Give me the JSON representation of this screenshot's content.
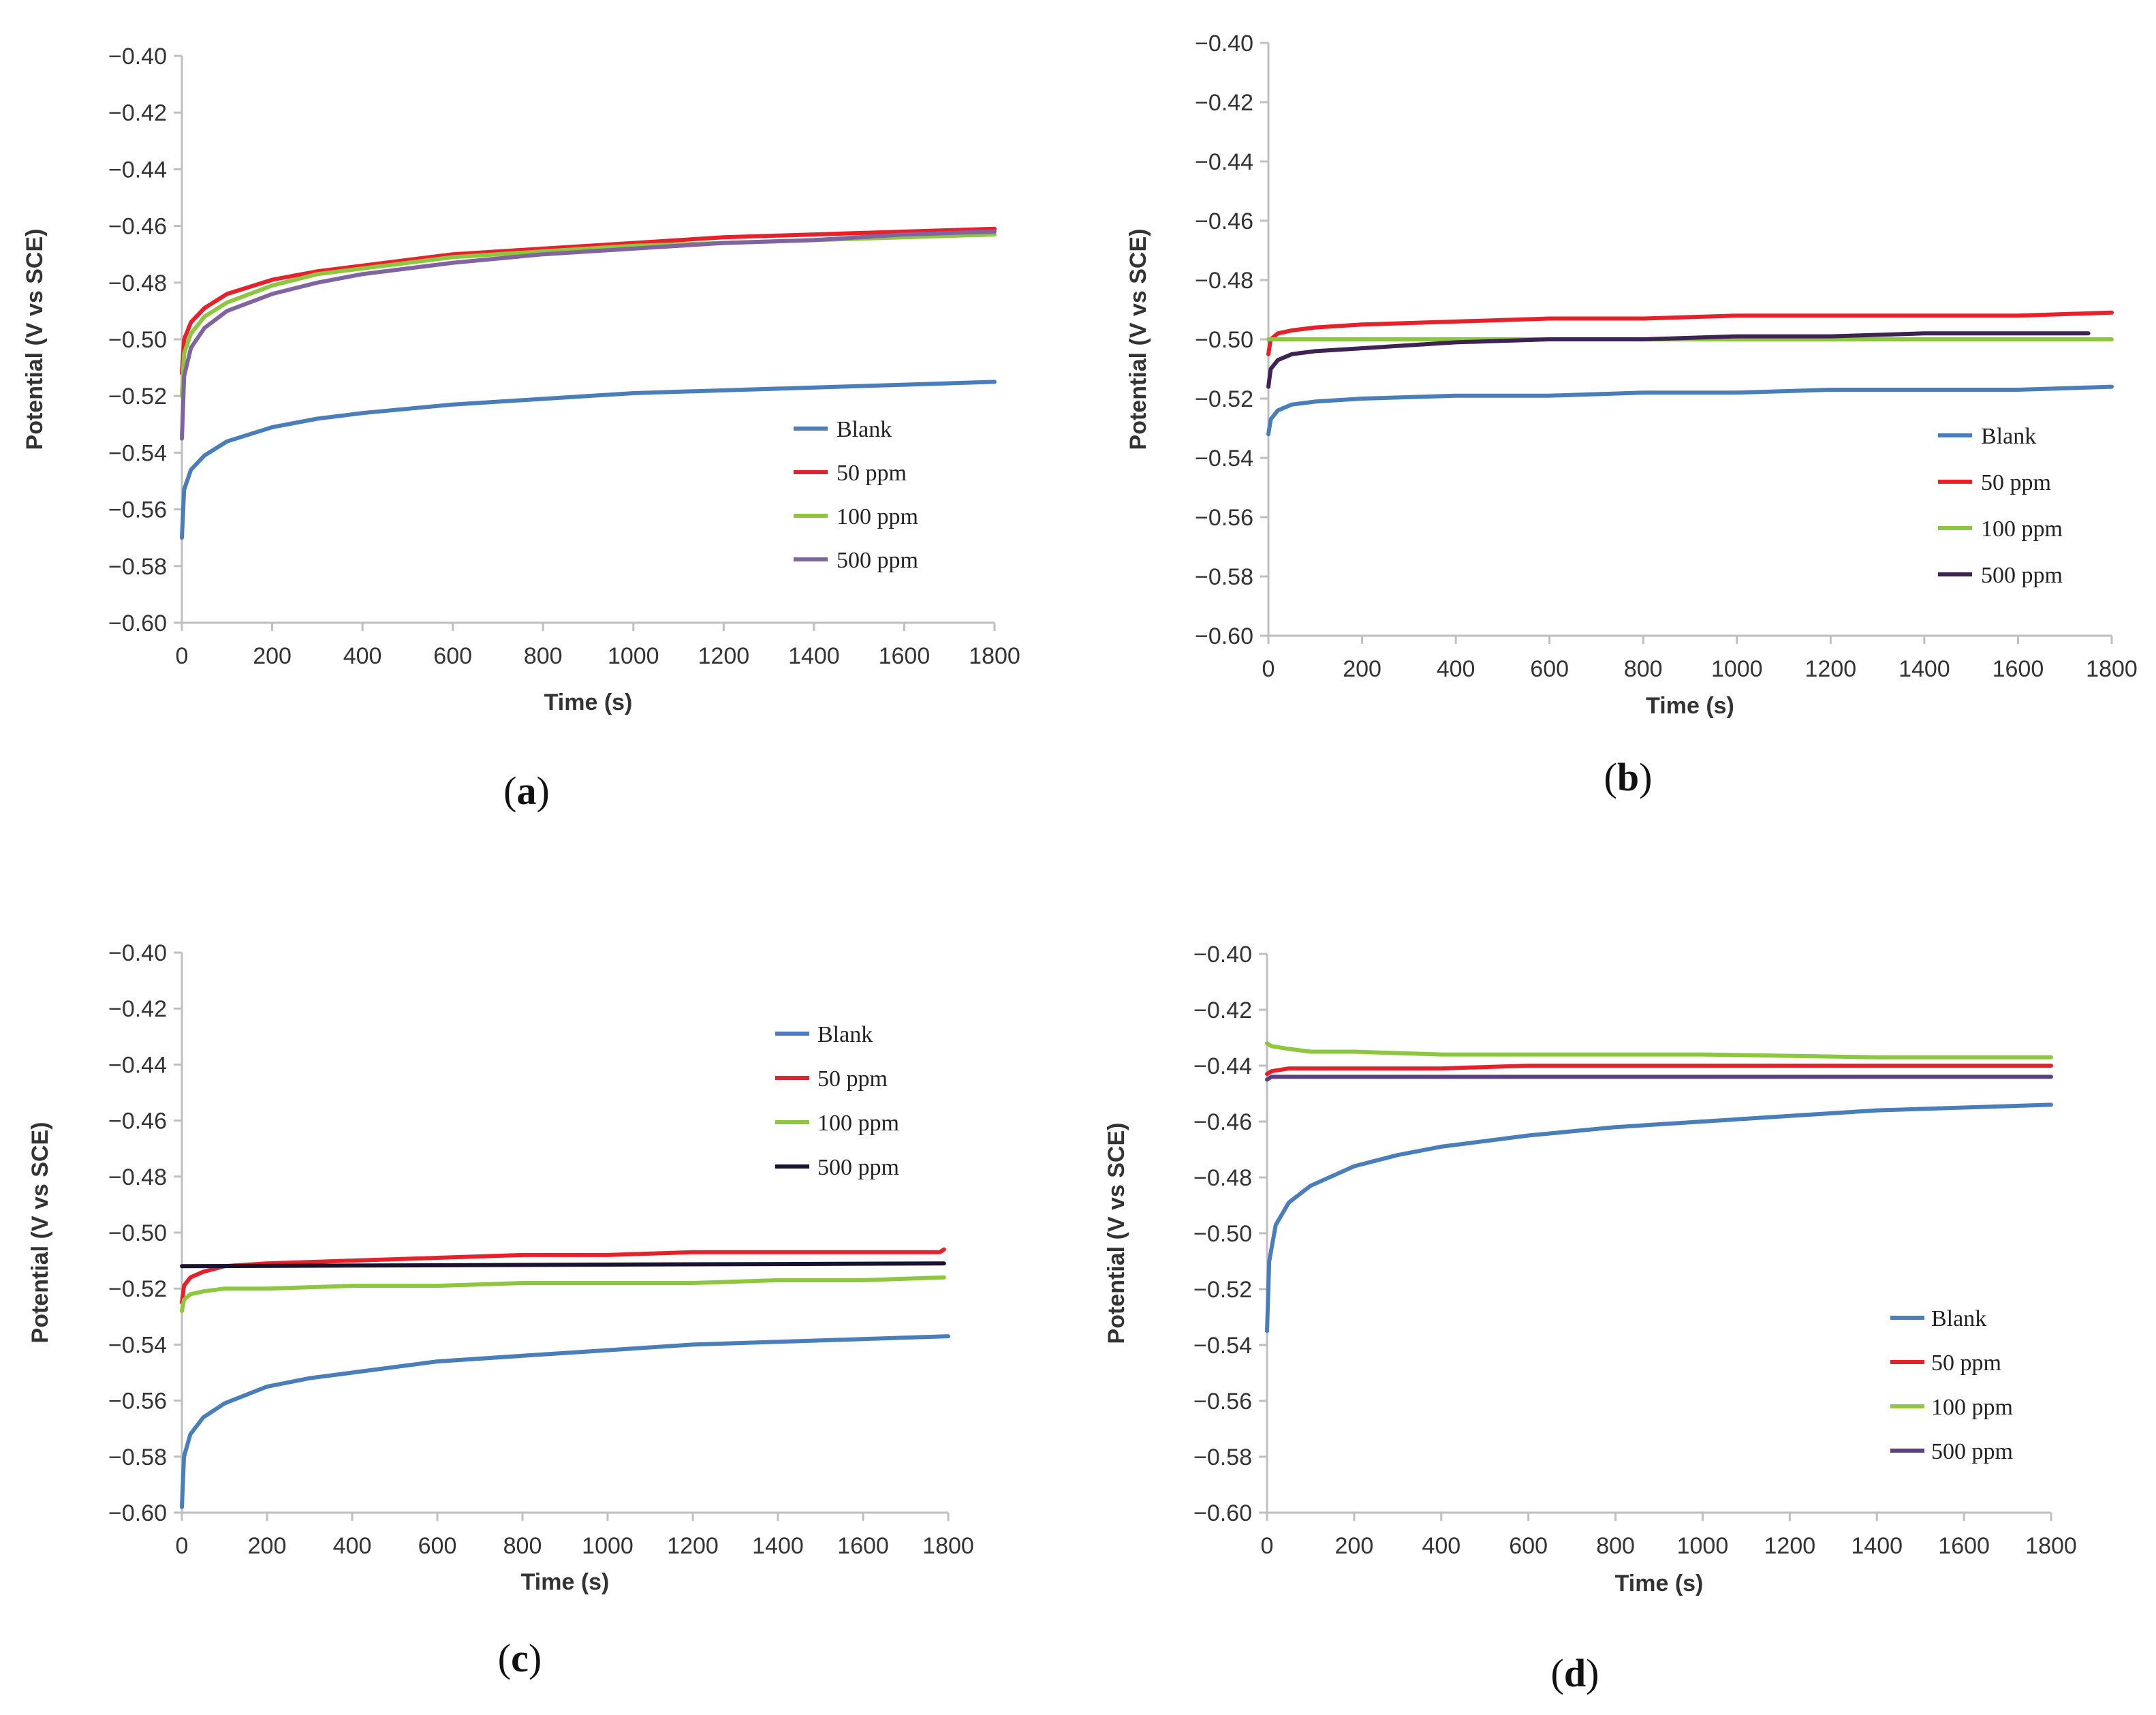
{
  "chart_data": [
    {
      "type": "line",
      "panel_label": "a",
      "xlabel": "Time (s)",
      "ylabel": "Potential (V vs SCE)",
      "xlim": [
        0,
        1800
      ],
      "ylim": [
        -0.6,
        -0.4
      ],
      "xticks": [
        0,
        200,
        400,
        600,
        800,
        1000,
        1200,
        1400,
        1600,
        1800
      ],
      "yticks": [
        -0.4,
        -0.42,
        -0.44,
        -0.46,
        -0.48,
        -0.5,
        -0.52,
        -0.54,
        -0.56,
        -0.58,
        -0.6
      ],
      "ytick_labels": [
        "−0.40",
        "−0.42",
        "−0.44",
        "−0.46",
        "−0.48",
        "−0.50",
        "−0.52",
        "−0.54",
        "−0.56",
        "−0.58",
        "−0.60"
      ],
      "legend": "center-right",
      "series": [
        {
          "name": "Blank",
          "color": "#4a7ebb",
          "x": [
            0,
            5,
            20,
            50,
            100,
            200,
            300,
            400,
            600,
            800,
            1000,
            1200,
            1400,
            1600,
            1800
          ],
          "y": [
            -0.57,
            -0.553,
            -0.546,
            -0.541,
            -0.536,
            -0.531,
            -0.528,
            -0.526,
            -0.523,
            -0.521,
            -0.519,
            -0.518,
            -0.517,
            -0.516,
            -0.515
          ]
        },
        {
          "name": "50 ppm",
          "color": "#e8202a",
          "x": [
            0,
            5,
            20,
            50,
            100,
            200,
            300,
            400,
            600,
            800,
            1000,
            1200,
            1400,
            1600,
            1800
          ],
          "y": [
            -0.512,
            -0.5,
            -0.494,
            -0.489,
            -0.484,
            -0.479,
            -0.476,
            -0.474,
            -0.47,
            -0.468,
            -0.466,
            -0.464,
            -0.463,
            -0.462,
            -0.461
          ]
        },
        {
          "name": "100 ppm",
          "color": "#8dc63f",
          "x": [
            0,
            5,
            20,
            50,
            100,
            200,
            300,
            400,
            600,
            800,
            1000,
            1200,
            1400,
            1600,
            1800
          ],
          "y": [
            -0.52,
            -0.505,
            -0.498,
            -0.492,
            -0.487,
            -0.481,
            -0.477,
            -0.475,
            -0.471,
            -0.469,
            -0.467,
            -0.466,
            -0.465,
            -0.464,
            -0.463
          ]
        },
        {
          "name": "500 ppm",
          "color": "#8064a2",
          "x": [
            0,
            5,
            20,
            50,
            100,
            200,
            300,
            400,
            600,
            800,
            1000,
            1200,
            1400,
            1600,
            1800
          ],
          "y": [
            -0.535,
            -0.513,
            -0.503,
            -0.496,
            -0.49,
            -0.484,
            -0.48,
            -0.477,
            -0.473,
            -0.47,
            -0.468,
            -0.466,
            -0.465,
            -0.463,
            -0.462
          ]
        }
      ]
    },
    {
      "type": "line",
      "panel_label": "b",
      "xlabel": "Time (s)",
      "ylabel": "Potential (V vs SCE)",
      "xlim": [
        0,
        1800
      ],
      "ylim": [
        -0.6,
        -0.4
      ],
      "xticks": [
        0,
        200,
        400,
        600,
        800,
        1000,
        1200,
        1400,
        1600,
        1800
      ],
      "yticks": [
        -0.4,
        -0.42,
        -0.44,
        -0.46,
        -0.48,
        -0.5,
        -0.52,
        -0.54,
        -0.56,
        -0.58,
        -0.6
      ],
      "ytick_labels": [
        "−0.40",
        "−0.42",
        "−0.44",
        "−0.46",
        "−0.48",
        "−0.50",
        "−0.52",
        "−0.54",
        "−0.56",
        "−0.58",
        "−0.60"
      ],
      "legend": "bottom-right",
      "series": [
        {
          "name": "Blank",
          "color": "#4a7ebb",
          "x": [
            0,
            5,
            20,
            50,
            100,
            200,
            400,
            600,
            800,
            1000,
            1200,
            1400,
            1600,
            1800
          ],
          "y": [
            -0.532,
            -0.527,
            -0.524,
            -0.522,
            -0.521,
            -0.52,
            -0.519,
            -0.519,
            -0.518,
            -0.518,
            -0.517,
            -0.517,
            -0.517,
            -0.516
          ]
        },
        {
          "name": "50 ppm",
          "color": "#e8202a",
          "x": [
            0,
            5,
            20,
            50,
            100,
            200,
            400,
            600,
            800,
            1000,
            1200,
            1400,
            1600,
            1800
          ],
          "y": [
            -0.505,
            -0.5,
            -0.498,
            -0.497,
            -0.496,
            -0.495,
            -0.494,
            -0.493,
            -0.493,
            -0.492,
            -0.492,
            -0.492,
            -0.492,
            -0.491
          ]
        },
        {
          "name": "100 ppm",
          "color": "#8dc63f",
          "x": [
            0,
            10,
            50,
            200,
            400,
            800,
            1200,
            1600,
            1800
          ],
          "y": [
            -0.5,
            -0.5,
            -0.5,
            -0.5,
            -0.5,
            -0.5,
            -0.5,
            -0.5,
            -0.5
          ]
        },
        {
          "name": "500 ppm",
          "color": "#3d2354",
          "x": [
            0,
            5,
            20,
            50,
            100,
            200,
            400,
            600,
            800,
            1000,
            1200,
            1400,
            1600,
            1750
          ],
          "y": [
            -0.516,
            -0.51,
            -0.507,
            -0.505,
            -0.504,
            -0.503,
            -0.501,
            -0.5,
            -0.5,
            -0.499,
            -0.499,
            -0.498,
            -0.498,
            -0.498
          ]
        }
      ]
    },
    {
      "type": "line",
      "panel_label": "c",
      "xlabel": "Time (s)",
      "ylabel": "Potential (V vs SCE)",
      "xlim": [
        0,
        1800
      ],
      "ylim": [
        -0.6,
        -0.4
      ],
      "xticks": [
        0,
        200,
        400,
        600,
        800,
        1000,
        1200,
        1400,
        1600,
        1800
      ],
      "yticks": [
        -0.4,
        -0.42,
        -0.44,
        -0.46,
        -0.48,
        -0.5,
        -0.52,
        -0.54,
        -0.56,
        -0.58,
        -0.6
      ],
      "ytick_labels": [
        "−0.40",
        "−0.42",
        "−0.44",
        "−0.46",
        "−0.48",
        "−0.50",
        "−0.52",
        "−0.54",
        "−0.56",
        "−0.58",
        "−0.60"
      ],
      "legend": "top-right",
      "series": [
        {
          "name": "Blank",
          "color": "#4a7ebb",
          "x": [
            0,
            5,
            20,
            50,
            100,
            200,
            300,
            400,
            600,
            800,
            1000,
            1200,
            1400,
            1600,
            1800
          ],
          "y": [
            -0.598,
            -0.58,
            -0.572,
            -0.566,
            -0.561,
            -0.555,
            -0.552,
            -0.55,
            -0.546,
            -0.544,
            -0.542,
            -0.54,
            -0.539,
            -0.538,
            -0.537
          ]
        },
        {
          "name": "50 ppm",
          "color": "#e8202a",
          "x": [
            0,
            5,
            20,
            50,
            100,
            200,
            400,
            600,
            800,
            1000,
            1200,
            1400,
            1600,
            1780,
            1790
          ],
          "y": [
            -0.525,
            -0.519,
            -0.516,
            -0.514,
            -0.512,
            -0.511,
            -0.51,
            -0.509,
            -0.508,
            -0.508,
            -0.507,
            -0.507,
            -0.507,
            -0.507,
            -0.506
          ]
        },
        {
          "name": "100 ppm",
          "color": "#8dc63f",
          "x": [
            0,
            5,
            20,
            50,
            100,
            200,
            400,
            600,
            800,
            1000,
            1200,
            1400,
            1600,
            1790
          ],
          "y": [
            -0.528,
            -0.524,
            -0.522,
            -0.521,
            -0.52,
            -0.52,
            -0.519,
            -0.519,
            -0.518,
            -0.518,
            -0.518,
            -0.517,
            -0.517,
            -0.516
          ]
        },
        {
          "name": "500 ppm",
          "color": "#1a1330",
          "x": [
            0,
            1790
          ],
          "y": [
            -0.512,
            -0.511
          ]
        }
      ]
    },
    {
      "type": "line",
      "panel_label": "d",
      "xlabel": "Time (s)",
      "ylabel": "Potential (V vs SCE)",
      "xlim": [
        0,
        1800
      ],
      "ylim": [
        -0.6,
        -0.4
      ],
      "xticks": [
        0,
        200,
        400,
        600,
        800,
        1000,
        1200,
        1400,
        1600,
        1800
      ],
      "yticks": [
        -0.4,
        -0.42,
        -0.44,
        -0.46,
        -0.48,
        -0.5,
        -0.52,
        -0.54,
        -0.56,
        -0.58,
        -0.6
      ],
      "ytick_labels": [
        "−0.40",
        "−0.42",
        "−0.44",
        "−0.46",
        "−0.48",
        "−0.50",
        "−0.52",
        "−0.54",
        "−0.56",
        "−0.58",
        "−0.60"
      ],
      "legend": "bottom-right",
      "series": [
        {
          "name": "Blank",
          "color": "#4a7ebb",
          "x": [
            0,
            5,
            20,
            50,
            100,
            200,
            300,
            400,
            600,
            800,
            1000,
            1200,
            1400,
            1600,
            1800
          ],
          "y": [
            -0.535,
            -0.51,
            -0.497,
            -0.489,
            -0.483,
            -0.476,
            -0.472,
            -0.469,
            -0.465,
            -0.462,
            -0.46,
            -0.458,
            -0.456,
            -0.455,
            -0.454
          ]
        },
        {
          "name": "50 ppm",
          "color": "#e8202a",
          "x": [
            0,
            10,
            50,
            200,
            400,
            600,
            1000,
            1400,
            1800
          ],
          "y": [
            -0.443,
            -0.442,
            -0.441,
            -0.441,
            -0.441,
            -0.44,
            -0.44,
            -0.44,
            -0.44
          ]
        },
        {
          "name": "100 ppm",
          "color": "#8dc63f",
          "x": [
            0,
            10,
            50,
            100,
            200,
            400,
            600,
            1000,
            1400,
            1800
          ],
          "y": [
            -0.432,
            -0.433,
            -0.434,
            -0.435,
            -0.435,
            -0.436,
            -0.436,
            -0.436,
            -0.437,
            -0.437
          ]
        },
        {
          "name": "500 ppm",
          "color": "#5b3f84",
          "x": [
            0,
            10,
            50,
            200,
            600,
            1200,
            1800
          ],
          "y": [
            -0.445,
            -0.444,
            -0.444,
            -0.444,
            -0.444,
            -0.444,
            -0.444
          ]
        }
      ]
    }
  ]
}
